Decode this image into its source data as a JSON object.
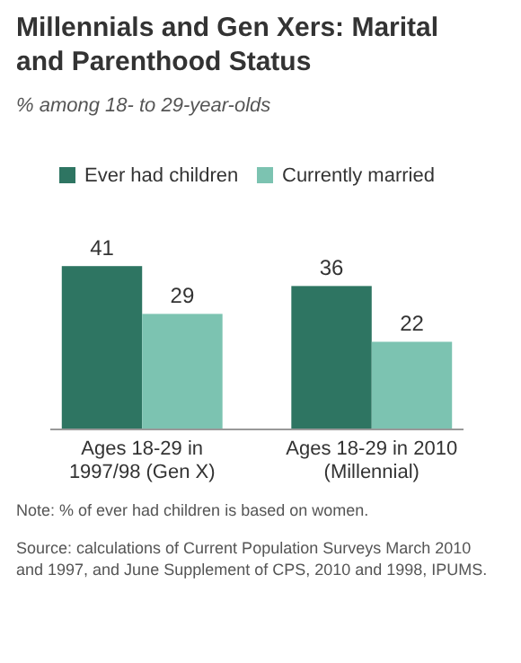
{
  "chart_data": {
    "type": "bar",
    "title": "Millennials and Gen Xers: Marital and Parenthood Status",
    "subtitle": "% among 18- to 29-year-olds",
    "categories": [
      "Ages 18-29 in 1997/98 (Gen X)",
      "Ages 18-29 in 2010 (Millennial)"
    ],
    "series": [
      {
        "name": "Ever had children",
        "color": "#2e7562",
        "values": [
          41,
          36
        ]
      },
      {
        "name": "Currently married",
        "color": "#7cc3b1",
        "values": [
          29,
          22
        ]
      }
    ],
    "data_labels": true,
    "legend": "top",
    "annotations": [
      "Note: % of ever had children is based on women.",
      "Source: calculations of Current Population Surveys March 2010 and 1997, and June Supplement of CPS, 2010 and 1998, IPUMS."
    ]
  }
}
